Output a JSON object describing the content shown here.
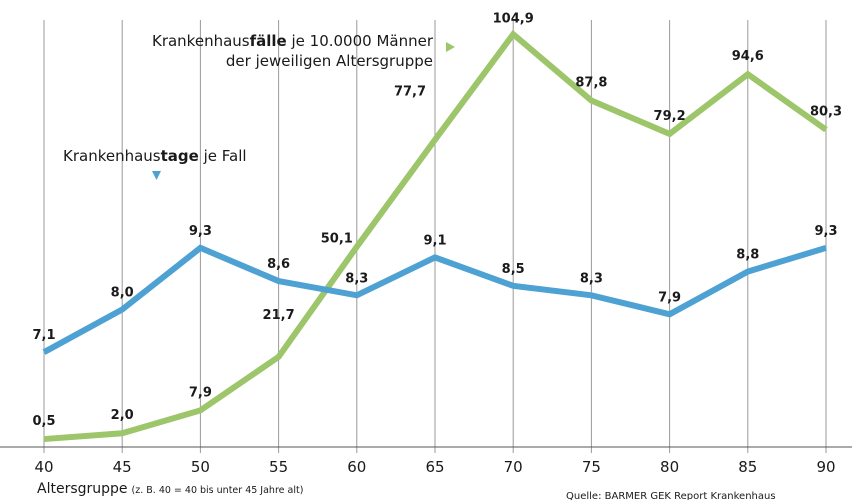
{
  "chart_data": {
    "type": "line",
    "x": [
      40,
      45,
      50,
      55,
      60,
      65,
      70,
      75,
      80,
      85,
      90
    ],
    "x_tick_labels": [
      "40",
      "45",
      "50",
      "55",
      "60",
      "65",
      "70",
      "75",
      "80",
      "85",
      "90"
    ],
    "xlabel": "Altersgruppe",
    "xlabel_note": "(z. B. 40 = 40 bis unter 45 Jahre alt)",
    "grid": "vertical",
    "series": [
      {
        "id": "faelle",
        "name_plain": "Krankenhaus",
        "name_bold": "fälle",
        "name_rest": " je 10.0000 Männer",
        "name_line2": "der jeweiligen Altersgruppe",
        "color": "#9dc56a",
        "values": [
          0.5,
          2.0,
          7.9,
          21.7,
          50.1,
          77.7,
          104.9,
          87.8,
          79.2,
          94.6,
          80.3
        ],
        "labels": [
          "0,5",
          "2,0",
          "7,9",
          "21,7",
          "50,1",
          "77,7",
          "104,9",
          "87,8",
          "79,2",
          "94,6",
          "80,3"
        ],
        "ylim": [
          0,
          106
        ]
      },
      {
        "id": "tage",
        "name_plain": "Krankenhaus",
        "name_bold": "tage",
        "name_rest": " je Fall",
        "color": "#4ea1d3",
        "values": [
          7.1,
          8.0,
          9.3,
          8.6,
          8.3,
          9.1,
          8.5,
          8.3,
          7.9,
          8.8,
          9.3
        ],
        "labels": [
          "7,1",
          "8,0",
          "9,3",
          "8,6",
          "8,3",
          "9,1",
          "8,5",
          "8,3",
          "7,9",
          "8,8",
          "9,3"
        ],
        "ylim": [
          5.1,
          10.5
        ]
      }
    ],
    "source": "Quelle: BARMER GEK Report Krankenhaus"
  }
}
